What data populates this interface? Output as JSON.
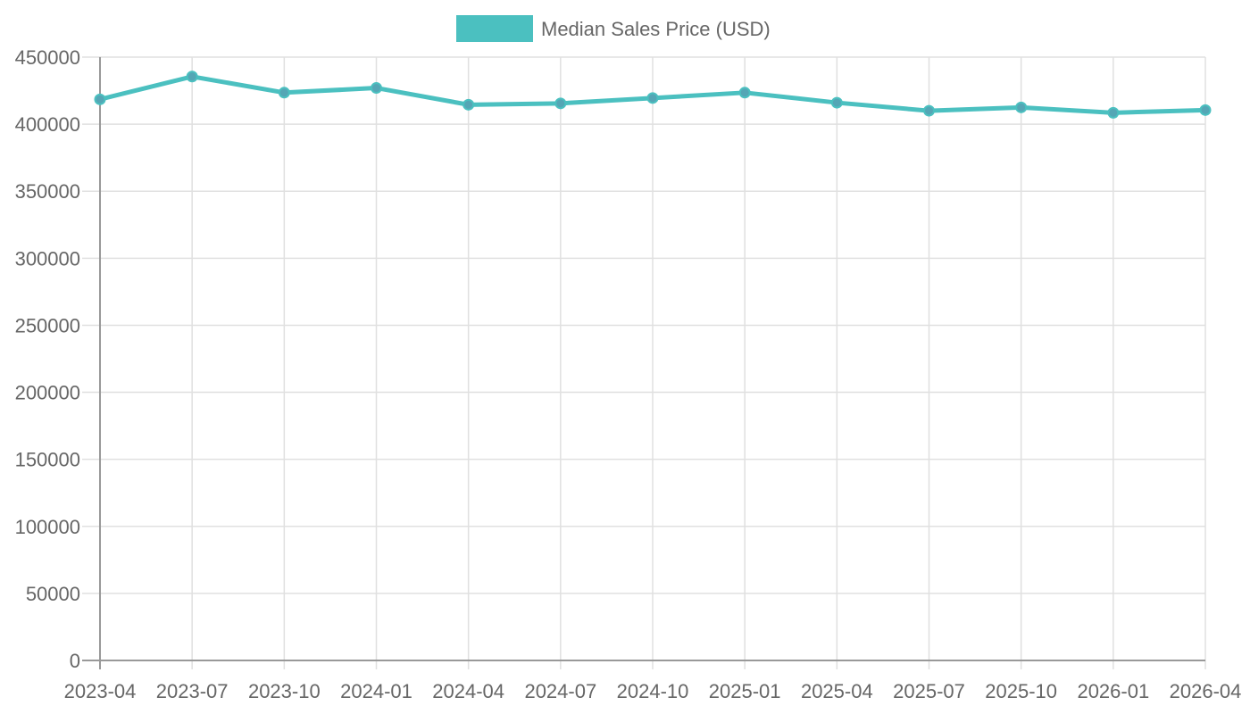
{
  "chart_data": {
    "type": "line",
    "legend": {
      "position": "top",
      "label": "Median Sales Price (USD)"
    },
    "x": [
      "2023-04",
      "2023-07",
      "2023-10",
      "2024-01",
      "2024-04",
      "2024-07",
      "2024-10",
      "2025-01",
      "2025-04",
      "2025-07",
      "2025-10",
      "2026-01",
      "2026-04"
    ],
    "series": [
      {
        "name": "Median Sales Price (USD)",
        "values": [
          418500,
          435500,
          423500,
          427000,
          414500,
          415500,
          419500,
          423500,
          416000,
          410000,
          412500,
          408500,
          410500
        ]
      }
    ],
    "y_ticks": [
      0,
      50000,
      100000,
      150000,
      200000,
      250000,
      300000,
      350000,
      400000,
      450000
    ],
    "ylim": [
      0,
      450000
    ],
    "grid": true,
    "colors": {
      "line": "#4bc0c0",
      "point_fill": "#54a6b5",
      "grid": "#e0e0e0",
      "axis": "#999999",
      "text": "#666666"
    }
  }
}
